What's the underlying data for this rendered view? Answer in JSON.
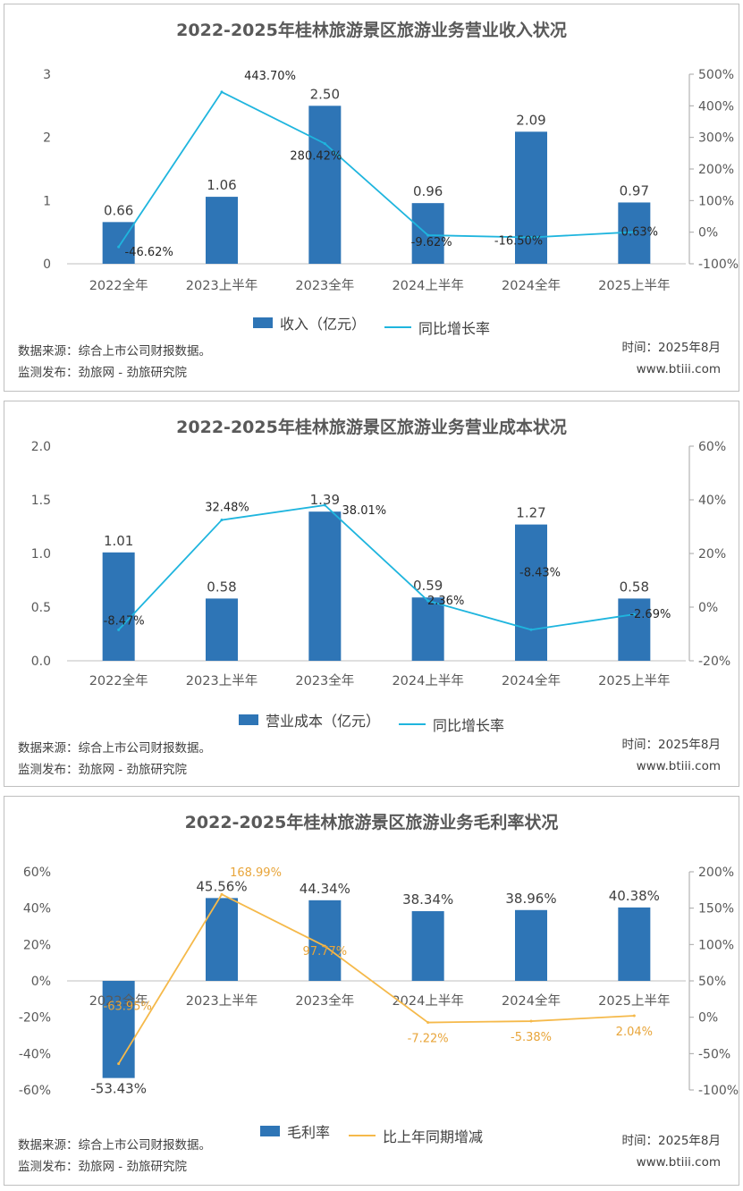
{
  "chart_data": [
    {
      "type": "bar",
      "title": "2022-2025年桂林旅游景区旅游业务营业收入状况",
      "categories": [
        "2022全年",
        "2023上半年",
        "2023全年",
        "2024上半年",
        "2024全年",
        "2025上半年"
      ],
      "series": [
        {
          "name": "收入（亿元）",
          "type": "bar",
          "axis": "left",
          "color": "#2E75B6",
          "values": [
            0.66,
            1.06,
            2.5,
            0.96,
            2.09,
            0.97
          ],
          "labels": [
            "0.66",
            "1.06",
            "2.50",
            "0.96",
            "2.09",
            "0.97"
          ]
        },
        {
          "name": "同比增长率",
          "type": "line",
          "axis": "right",
          "color": "#1FB5DE",
          "values": [
            -46.62,
            443.7,
            280.42,
            -9.62,
            -16.5,
            0.63
          ],
          "labels": [
            "-46.62%",
            "443.70%",
            "280.42%",
            "-9.62%",
            "-16.50%",
            "0.63%"
          ]
        }
      ],
      "y_left": {
        "min": 0,
        "max": 3,
        "ticks": [
          "0",
          "1",
          "2",
          "3"
        ]
      },
      "y_right": {
        "min": -100,
        "max": 500,
        "ticks": [
          "-100%",
          "0%",
          "100%",
          "200%",
          "300%",
          "400%",
          "500%"
        ]
      },
      "legend": "bottom",
      "grid": false,
      "footer": {
        "source": "数据来源：综合上市公司财报数据。",
        "publisher": "监测发布：劲旅网 - 劲旅研究院",
        "time": "时间：2025年8月",
        "site": "www.btiii.com"
      }
    },
    {
      "type": "bar",
      "title": "2022-2025年桂林旅游景区旅游业务营业成本状况",
      "categories": [
        "2022全年",
        "2023上半年",
        "2023全年",
        "2024上半年",
        "2024全年",
        "2025上半年"
      ],
      "series": [
        {
          "name": "营业成本（亿元）",
          "type": "bar",
          "axis": "left",
          "color": "#2E75B6",
          "values": [
            1.01,
            0.58,
            1.39,
            0.59,
            1.27,
            0.58
          ],
          "labels": [
            "1.01",
            "0.58",
            "1.39",
            "0.59",
            "1.27",
            "0.58"
          ]
        },
        {
          "name": "同比增长率",
          "type": "line",
          "axis": "right",
          "color": "#1FB5DE",
          "values": [
            -8.47,
            32.48,
            38.01,
            2.36,
            -8.43,
            -2.69
          ],
          "labels": [
            "-8.47%",
            "32.48%",
            "38.01%",
            "2.36%",
            "-8.43%",
            "-2.69%"
          ]
        }
      ],
      "y_left": {
        "min": 0,
        "max": 2,
        "ticks": [
          "0.0",
          "0.5",
          "1.0",
          "1.5",
          "2.0"
        ]
      },
      "y_right": {
        "min": -20,
        "max": 60,
        "ticks": [
          "-20%",
          "0%",
          "20%",
          "40%",
          "60%"
        ]
      },
      "legend": "bottom",
      "grid": false,
      "footer": {
        "source": "数据来源：综合上市公司财报数据。",
        "publisher": "监测发布：劲旅网 - 劲旅研究院",
        "time": "时间：2025年8月",
        "site": "www.btiii.com"
      }
    },
    {
      "type": "bar",
      "title": "2022-2025年桂林旅游景区旅游业务毛利率状况",
      "categories": [
        "2022全年",
        "2023上半年",
        "2023全年",
        "2024上半年",
        "2024全年",
        "2025上半年"
      ],
      "series": [
        {
          "name": "毛利率",
          "type": "bar",
          "axis": "left",
          "color": "#2E75B6",
          "values": [
            -53.43,
            45.56,
            44.34,
            38.34,
            38.96,
            40.38
          ],
          "labels": [
            "-53.43%",
            "45.56%",
            "44.34%",
            "38.34%",
            "38.96%",
            "40.38%"
          ]
        },
        {
          "name": "比上年同期增减",
          "type": "line",
          "axis": "right",
          "color": "#F5B94A",
          "values": [
            -63.95,
            168.99,
            97.77,
            -7.22,
            -5.38,
            2.04
          ],
          "labels": [
            "-63.95%",
            "168.99%",
            "97.77%",
            "-7.22%",
            "-5.38%",
            "2.04%"
          ]
        }
      ],
      "y_left": {
        "min": -60,
        "max": 60,
        "ticks": [
          "-60%",
          "-40%",
          "-20%",
          "0%",
          "20%",
          "40%",
          "60%"
        ]
      },
      "y_right": {
        "min": -100,
        "max": 200,
        "ticks": [
          "-100%",
          "-50%",
          "0%",
          "50%",
          "100%",
          "150%",
          "200%"
        ]
      },
      "legend": "bottom",
      "grid": false,
      "footer": {
        "source": "数据来源：综合上市公司财报数据。",
        "publisher": "监测发布：劲旅网 - 劲旅研究院",
        "time": "时间：2025年8月",
        "site": "www.btiii.com"
      }
    }
  ]
}
